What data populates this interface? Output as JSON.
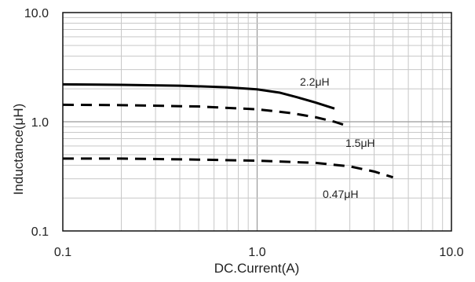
{
  "chart_data": {
    "type": "line",
    "xlabel": "DC.Current(A)",
    "ylabel": "Inductance(μH)",
    "x_scale": "log",
    "y_scale": "log",
    "xlim": [
      0.1,
      10.0
    ],
    "ylim": [
      0.1,
      10.0
    ],
    "x_tick_labels": [
      "0.1",
      "1.0",
      "10.0"
    ],
    "y_tick_labels": [
      "0.1",
      "1.0",
      "10.0"
    ],
    "grid": true,
    "series": [
      {
        "name": "2.2μH",
        "style": "solid",
        "color": "#000000",
        "x": [
          0.1,
          0.2,
          0.4,
          0.7,
          1.0,
          1.3,
          1.6,
          2.0,
          2.5
        ],
        "y": [
          2.2,
          2.18,
          2.14,
          2.07,
          1.98,
          1.85,
          1.68,
          1.5,
          1.32
        ]
      },
      {
        "name": "1.5μH",
        "style": "dashed",
        "color": "#000000",
        "x": [
          0.1,
          0.2,
          0.5,
          1.0,
          1.5,
          2.0,
          2.5,
          3.0
        ],
        "y": [
          1.43,
          1.42,
          1.38,
          1.3,
          1.2,
          1.1,
          1.0,
          0.9
        ]
      },
      {
        "name": "0.47μH",
        "style": "dashed",
        "color": "#000000",
        "x": [
          0.1,
          0.2,
          0.5,
          1.0,
          2.0,
          3.0,
          4.0,
          5.0
        ],
        "y": [
          0.46,
          0.46,
          0.45,
          0.44,
          0.42,
          0.39,
          0.35,
          0.31
        ]
      }
    ]
  }
}
